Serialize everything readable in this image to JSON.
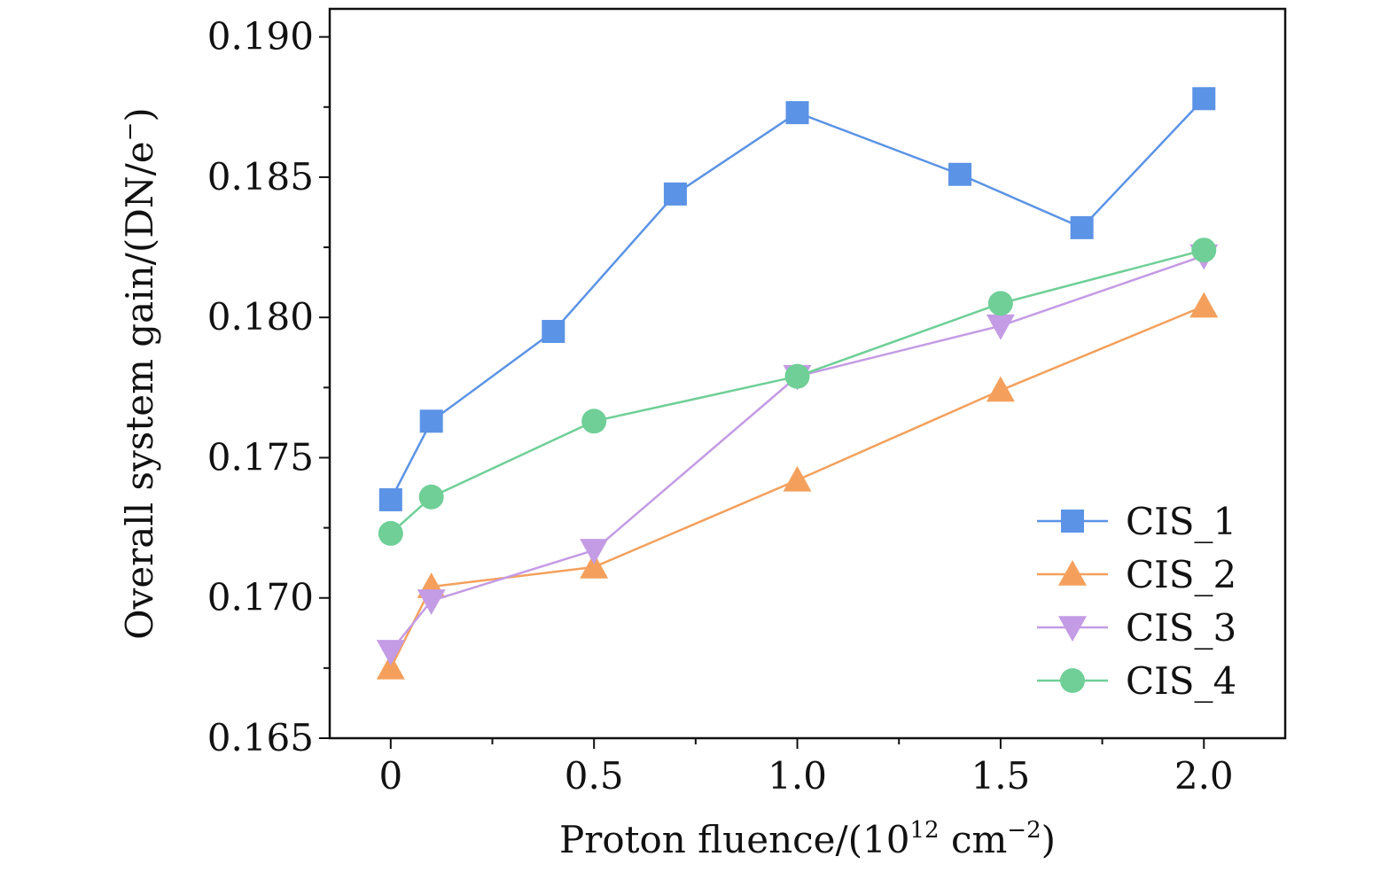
{
  "chart_data": {
    "type": "line",
    "xlabel_prefix": "Proton fluence/(10",
    "xlabel_exp1": "12",
    "xlabel_mid": " cm",
    "xlabel_exp2": "−2",
    "xlabel_suffix": ")",
    "ylabel_main": "Overall system gain/(DN/e",
    "ylabel_sup": "−",
    "ylabel_suffix": ")",
    "xlim": [
      -0.15,
      2.2
    ],
    "ylim": [
      0.165,
      0.191
    ],
    "xticks": [
      0,
      0.5,
      1.0,
      1.5,
      2.0
    ],
    "xtick_labels": [
      "0",
      "0.5",
      "1.0",
      "1.5",
      "2.0"
    ],
    "xminor": [
      0.25,
      0.75,
      1.25,
      1.75
    ],
    "yticks": [
      0.165,
      0.17,
      0.175,
      0.18,
      0.185,
      0.19
    ],
    "ytick_labels": [
      "0.165",
      "0.170",
      "0.175",
      "0.180",
      "0.185",
      "0.190"
    ],
    "yminor": [
      0.1675,
      0.1725,
      0.1775,
      0.1825,
      0.1875
    ],
    "legend_position": "bottom-right",
    "series": [
      {
        "name": "CIS_1",
        "color": "#5b93e6",
        "marker": "square",
        "x": [
          0,
          0.1,
          0.4,
          0.7,
          1.0,
          1.4,
          1.7,
          2.0
        ],
        "y": [
          0.1735,
          0.1763,
          0.1795,
          0.1844,
          0.1873,
          0.1851,
          0.1832,
          0.1878
        ]
      },
      {
        "name": "CIS_2",
        "color": "#f4a05c",
        "marker": "triangle-up",
        "x": [
          0,
          0.1,
          0.5,
          1.0,
          1.5,
          2.0
        ],
        "y": [
          0.1675,
          0.1704,
          0.1711,
          0.1742,
          0.1774,
          0.1804
        ]
      },
      {
        "name": "CIS_3",
        "color": "#c49be5",
        "marker": "triangle-down",
        "x": [
          0,
          0.1,
          0.5,
          1.0,
          1.5,
          2.0
        ],
        "y": [
          0.1681,
          0.1699,
          0.1717,
          0.1779,
          0.1797,
          0.1822
        ]
      },
      {
        "name": "CIS_4",
        "color": "#6fcf97",
        "marker": "circle",
        "x": [
          0,
          0.1,
          0.5,
          1.0,
          1.5,
          2.0
        ],
        "y": [
          0.1723,
          0.1736,
          0.1763,
          0.1779,
          0.1805,
          0.1824
        ]
      }
    ]
  }
}
